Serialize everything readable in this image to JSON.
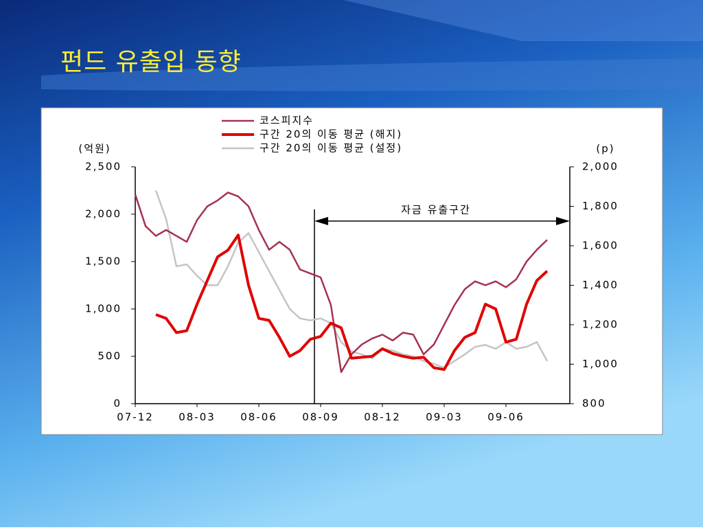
{
  "slide_title": "펀드 유출입 동향",
  "chart_data": {
    "type": "line",
    "y_label": "(억원)",
    "y2_label": "(p)",
    "annotation": "자금 유출구간",
    "categories": [
      "07-12",
      null,
      null,
      null,
      null,
      null,
      "08-03",
      null,
      null,
      null,
      null,
      null,
      "08-06",
      null,
      null,
      null,
      null,
      null,
      "08-09",
      null,
      null,
      null,
      null,
      null,
      "08-12",
      null,
      null,
      null,
      null,
      null,
      "09-03",
      null,
      null,
      null,
      null,
      null,
      "09-06",
      null,
      null,
      null,
      null,
      null,
      null
    ],
    "ylim": [
      0,
      2500
    ],
    "yticks": [
      0,
      500,
      {
        "value": 1000,
        "label": "1,000"
      },
      {
        "value": 1500,
        "label": "1,500"
      },
      {
        "value": 2000,
        "label": "2,000"
      },
      {
        "value": 2500,
        "label": "2,500"
      }
    ],
    "y2lim": [
      800,
      2000
    ],
    "y2ticks": [
      800,
      {
        "value": 1000,
        "label": "1,000"
      },
      {
        "value": 1200,
        "label": "1,200"
      },
      {
        "value": 1400,
        "label": "1,400"
      },
      {
        "value": 1600,
        "label": "1,600"
      },
      {
        "value": 1800,
        "label": "1,800"
      },
      {
        "value": 2000,
        "label": "2,000"
      }
    ],
    "grid": false,
    "legend": "top",
    "series": [
      {
        "name": "코스피지수",
        "color": "#a3324e",
        "axis": "y2",
        "width": 2.5,
        "values": [
          1860,
          1700,
          1650,
          1680,
          1650,
          1620,
          1730,
          1800,
          1830,
          1870,
          1850,
          1800,
          1680,
          1580,
          1620,
          1580,
          1480,
          1460,
          1440,
          1300,
          960,
          1050,
          1100,
          1130,
          1150,
          1120,
          1160,
          1150,
          1050,
          1100,
          1200,
          1300,
          1380,
          1420,
          1400,
          1420,
          1390,
          1430,
          1520,
          1580,
          1630,
          null,
          null
        ]
      },
      {
        "name": "구간 20의 이동 평균 (해지)",
        "color": "#e00000",
        "axis": "y",
        "width": 4,
        "values": [
          null,
          null,
          940,
          900,
          750,
          770,
          1050,
          1300,
          1550,
          1620,
          1780,
          1250,
          900,
          880,
          700,
          500,
          560,
          680,
          710,
          850,
          800,
          480,
          490,
          500,
          580,
          530,
          500,
          480,
          490,
          380,
          360,
          560,
          700,
          750,
          1050,
          1000,
          650,
          680,
          1050,
          1300,
          1400,
          null,
          null
        ]
      },
      {
        "name": "구간 20의 이동 평균 (설정)",
        "color": "#c4c4c4",
        "axis": "y",
        "width": 2.5,
        "values": [
          null,
          null,
          2250,
          1950,
          1450,
          1470,
          1350,
          1250,
          1250,
          1450,
          1700,
          1800,
          1600,
          1400,
          1200,
          1000,
          900,
          880,
          900,
          850,
          650,
          550,
          520,
          480,
          580,
          560,
          520,
          500,
          450,
          420,
          380,
          450,
          520,
          600,
          620,
          580,
          650,
          580,
          600,
          650,
          450,
          null,
          null
        ]
      }
    ]
  }
}
